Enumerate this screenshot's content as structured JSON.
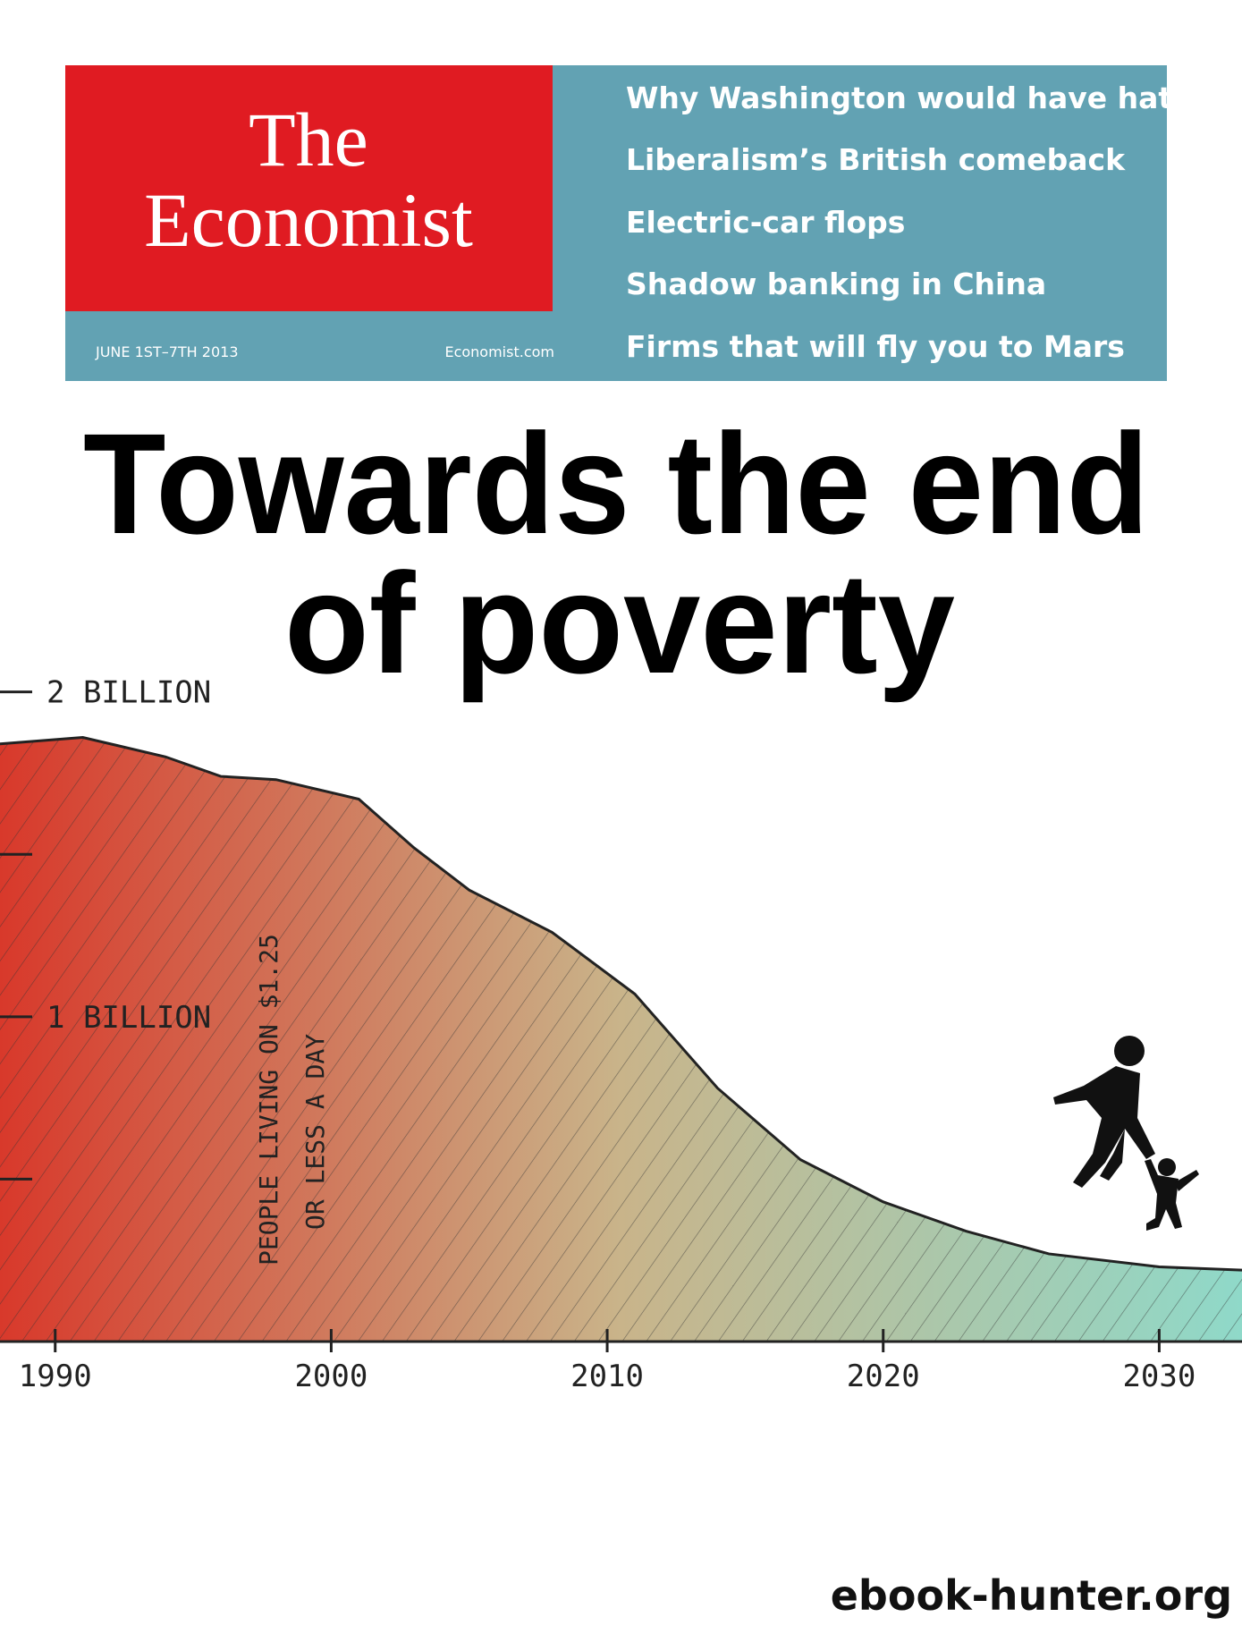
{
  "header": {
    "masthead": [
      "The",
      "Economist"
    ],
    "date": "JUNE 1ST–7TH 2013",
    "website": "Economist.com",
    "headlines": [
      "Why Washington would have hated DC",
      "Liberalism’s British comeback",
      "Electric-car flops",
      "Shadow banking in China",
      "Firms that will fly you to Mars"
    ]
  },
  "cover_title": [
    "Towards the end",
    "of poverty"
  ],
  "chart_data": {
    "type": "area",
    "x": [
      1988,
      1991,
      1994,
      1996,
      1998,
      2001,
      2003,
      2005,
      2008,
      2011,
      2014,
      2017,
      2020,
      2023,
      2026,
      2030,
      2033
    ],
    "values": [
      1.84,
      1.86,
      1.8,
      1.74,
      1.73,
      1.67,
      1.52,
      1.39,
      1.26,
      1.07,
      0.78,
      0.56,
      0.43,
      0.34,
      0.27,
      0.23,
      0.22
    ],
    "xlim": [
      1988,
      2033
    ],
    "xticks": [
      1990,
      2000,
      2010,
      2020,
      2030
    ],
    "ylim": [
      0,
      2.2
    ],
    "yticks": [
      {
        "value": 0.5,
        "label": null
      },
      {
        "value": 1,
        "label": "1 BILLION"
      },
      {
        "value": 1.5,
        "label": null
      },
      {
        "value": 2,
        "label": "2 BILLION"
      }
    ],
    "annotation": [
      "PEOPLE LIVING ON $1.25",
      "OR LESS A DAY"
    ],
    "color_start": "#d8392b",
    "color_mid": "#c9b48a",
    "color_end": "#8fd9c9"
  },
  "watermark": "ebook-hunter.org"
}
